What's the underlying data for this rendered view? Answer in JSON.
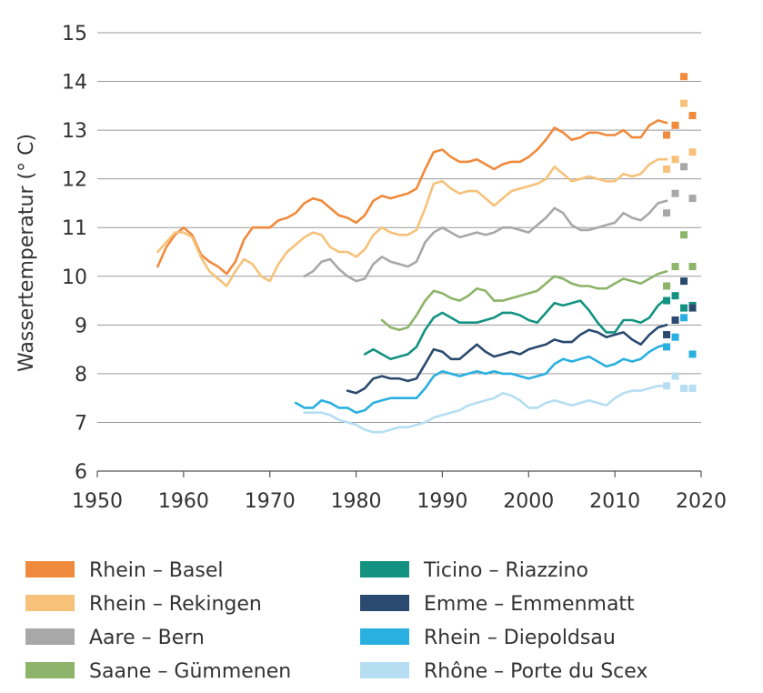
{
  "chart_data": {
    "type": "line",
    "ylabel": "Wassertemperatur (° C)",
    "xlabel": "",
    "xlim": [
      1950,
      2020
    ],
    "ylim": [
      6,
      15
    ],
    "x_ticks": [
      1950,
      1960,
      1970,
      1980,
      1990,
      2000,
      2010,
      2020
    ],
    "y_ticks": [
      6,
      7,
      8,
      9,
      10,
      11,
      12,
      13,
      14,
      15
    ],
    "grid": "horizontal",
    "legend_position": "bottom",
    "series": [
      {
        "name": "Rhein – Basel",
        "color": "#f08a3c",
        "x": [
          1957,
          1958,
          1959,
          1960,
          1961,
          1962,
          1963,
          1964,
          1965,
          1966,
          1967,
          1968,
          1969,
          1970,
          1971,
          1972,
          1973,
          1974,
          1975,
          1976,
          1977,
          1978,
          1979,
          1980,
          1981,
          1982,
          1983,
          1984,
          1985,
          1986,
          1987,
          1988,
          1989,
          1990,
          1991,
          1992,
          1993,
          1994,
          1995,
          1996,
          1997,
          1998,
          1999,
          2000,
          2001,
          2002,
          2003,
          2004,
          2005,
          2006,
          2007,
          2008,
          2009,
          2010,
          2011,
          2012,
          2013,
          2014,
          2015,
          2016
        ],
        "values": [
          10.2,
          10.6,
          10.85,
          11.0,
          10.85,
          10.45,
          10.3,
          10.2,
          10.05,
          10.3,
          10.75,
          11.0,
          11.0,
          11.0,
          11.15,
          11.2,
          11.3,
          11.5,
          11.6,
          11.55,
          11.4,
          11.25,
          11.2,
          11.1,
          11.25,
          11.55,
          11.65,
          11.6,
          11.65,
          11.7,
          11.8,
          12.2,
          12.55,
          12.6,
          12.45,
          12.35,
          12.35,
          12.4,
          12.3,
          12.2,
          12.3,
          12.35,
          12.35,
          12.45,
          12.6,
          12.8,
          13.05,
          12.95,
          12.8,
          12.85,
          12.95,
          12.95,
          12.9,
          12.9,
          13.0,
          12.85,
          12.85,
          13.1,
          13.2,
          13.15
        ],
        "projections": [
          [
            2016,
            12.9
          ],
          [
            2017,
            13.1
          ],
          [
            2018,
            14.1
          ],
          [
            2019,
            13.3
          ]
        ]
      },
      {
        "name": "Rhein – Rekingen",
        "color": "#f6c27a",
        "x": [
          1957,
          1958,
          1959,
          1960,
          1961,
          1962,
          1963,
          1964,
          1965,
          1966,
          1967,
          1968,
          1969,
          1970,
          1971,
          1972,
          1973,
          1974,
          1975,
          1976,
          1977,
          1978,
          1979,
          1980,
          1981,
          1982,
          1983,
          1984,
          1985,
          1986,
          1987,
          1988,
          1989,
          1990,
          1991,
          1992,
          1993,
          1994,
          1995,
          1996,
          1997,
          1998,
          1999,
          2000,
          2001,
          2002,
          2003,
          2004,
          2005,
          2006,
          2007,
          2008,
          2009,
          2010,
          2011,
          2012,
          2013,
          2014,
          2015,
          2016
        ],
        "values": [
          10.5,
          10.7,
          10.9,
          10.9,
          10.8,
          10.4,
          10.1,
          9.95,
          9.8,
          10.1,
          10.35,
          10.25,
          10.0,
          9.9,
          10.25,
          10.5,
          10.65,
          10.8,
          10.9,
          10.85,
          10.6,
          10.5,
          10.5,
          10.4,
          10.55,
          10.85,
          11.0,
          10.9,
          10.85,
          10.85,
          10.95,
          11.4,
          11.9,
          11.95,
          11.8,
          11.7,
          11.75,
          11.75,
          11.6,
          11.45,
          11.6,
          11.75,
          11.8,
          11.85,
          11.9,
          12.0,
          12.25,
          12.1,
          11.95,
          12.0,
          12.05,
          12.0,
          11.95,
          11.95,
          12.1,
          12.05,
          12.1,
          12.3,
          12.4,
          12.4
        ],
        "projections": [
          [
            2016,
            12.2
          ],
          [
            2017,
            12.4
          ],
          [
            2018,
            13.55
          ],
          [
            2019,
            12.55
          ]
        ]
      },
      {
        "name": "Aare – Bern",
        "color": "#a8a8a8",
        "x": [
          1974,
          1975,
          1976,
          1977,
          1978,
          1979,
          1980,
          1981,
          1982,
          1983,
          1984,
          1985,
          1986,
          1987,
          1988,
          1989,
          1990,
          1991,
          1992,
          1993,
          1994,
          1995,
          1996,
          1997,
          1998,
          1999,
          2000,
          2001,
          2002,
          2003,
          2004,
          2005,
          2006,
          2007,
          2008,
          2009,
          2010,
          2011,
          2012,
          2013,
          2014,
          2015,
          2016
        ],
        "values": [
          10.0,
          10.1,
          10.3,
          10.35,
          10.15,
          10.0,
          9.9,
          9.95,
          10.25,
          10.4,
          10.3,
          10.25,
          10.2,
          10.3,
          10.7,
          10.9,
          11.0,
          10.9,
          10.8,
          10.85,
          10.9,
          10.85,
          10.9,
          11.0,
          11.0,
          10.95,
          10.9,
          11.05,
          11.2,
          11.4,
          11.3,
          11.05,
          10.95,
          10.95,
          11.0,
          11.05,
          11.1,
          11.3,
          11.2,
          11.15,
          11.3,
          11.5,
          11.55
        ],
        "projections": [
          [
            2016,
            11.3
          ],
          [
            2017,
            11.7
          ],
          [
            2018,
            12.25
          ],
          [
            2019,
            11.6
          ]
        ]
      },
      {
        "name": "Saane – Gümmenen",
        "color": "#8db46a",
        "x": [
          1983,
          1984,
          1985,
          1986,
          1987,
          1988,
          1989,
          1990,
          1991,
          1992,
          1993,
          1994,
          1995,
          1996,
          1997,
          1998,
          1999,
          2000,
          2001,
          2002,
          2003,
          2004,
          2005,
          2006,
          2007,
          2008,
          2009,
          2010,
          2011,
          2012,
          2013,
          2014,
          2015,
          2016
        ],
        "values": [
          9.1,
          8.95,
          8.9,
          8.95,
          9.2,
          9.5,
          9.7,
          9.65,
          9.55,
          9.5,
          9.6,
          9.75,
          9.7,
          9.5,
          9.5,
          9.55,
          9.6,
          9.65,
          9.7,
          9.85,
          10.0,
          9.95,
          9.85,
          9.8,
          9.8,
          9.75,
          9.75,
          9.85,
          9.95,
          9.9,
          9.85,
          9.95,
          10.05,
          10.1
        ],
        "projections": [
          [
            2016,
            9.8
          ],
          [
            2017,
            10.2
          ],
          [
            2018,
            10.85
          ],
          [
            2019,
            10.2
          ]
        ]
      },
      {
        "name": "Ticino – Riazzino",
        "color": "#139282",
        "x": [
          1981,
          1982,
          1983,
          1984,
          1985,
          1986,
          1987,
          1988,
          1989,
          1990,
          1991,
          1992,
          1993,
          1994,
          1995,
          1996,
          1997,
          1998,
          1999,
          2000,
          2001,
          2002,
          2003,
          2004,
          2005,
          2006,
          2007,
          2008,
          2009,
          2010,
          2011,
          2012,
          2013,
          2014,
          2015,
          2016
        ],
        "values": [
          8.4,
          8.5,
          8.4,
          8.3,
          8.35,
          8.4,
          8.55,
          8.9,
          9.15,
          9.25,
          9.15,
          9.05,
          9.05,
          9.05,
          9.1,
          9.15,
          9.25,
          9.25,
          9.2,
          9.1,
          9.05,
          9.25,
          9.45,
          9.4,
          9.45,
          9.5,
          9.3,
          9.05,
          8.85,
          8.85,
          9.1,
          9.1,
          9.05,
          9.15,
          9.4,
          9.55
        ],
        "projections": [
          [
            2016,
            9.5
          ],
          [
            2017,
            9.6
          ],
          [
            2018,
            9.35
          ],
          [
            2019,
            9.4
          ]
        ]
      },
      {
        "name": "Emme – Emmenmatt",
        "color": "#2b4a6f",
        "x": [
          1979,
          1980,
          1981,
          1982,
          1983,
          1984,
          1985,
          1986,
          1987,
          1988,
          1989,
          1990,
          1991,
          1992,
          1993,
          1994,
          1995,
          1996,
          1997,
          1998,
          1999,
          2000,
          2001,
          2002,
          2003,
          2004,
          2005,
          2006,
          2007,
          2008,
          2009,
          2010,
          2011,
          2012,
          2013,
          2014,
          2015,
          2016
        ],
        "values": [
          7.65,
          7.6,
          7.7,
          7.9,
          7.95,
          7.9,
          7.9,
          7.85,
          7.9,
          8.2,
          8.5,
          8.45,
          8.3,
          8.3,
          8.45,
          8.6,
          8.45,
          8.35,
          8.4,
          8.45,
          8.4,
          8.5,
          8.55,
          8.6,
          8.7,
          8.65,
          8.65,
          8.8,
          8.9,
          8.85,
          8.75,
          8.8,
          8.85,
          8.7,
          8.6,
          8.8,
          8.95,
          9.0
        ],
        "projections": [
          [
            2016,
            8.8
          ],
          [
            2017,
            9.1
          ],
          [
            2018,
            9.9
          ],
          [
            2019,
            9.35
          ]
        ]
      },
      {
        "name": "Rhein – Diepoldsau",
        "color": "#29b0e0",
        "x": [
          1973,
          1974,
          1975,
          1976,
          1977,
          1978,
          1979,
          1980,
          1981,
          1982,
          1983,
          1984,
          1985,
          1986,
          1987,
          1988,
          1989,
          1990,
          1991,
          1992,
          1993,
          1994,
          1995,
          1996,
          1997,
          1998,
          1999,
          2000,
          2001,
          2002,
          2003,
          2004,
          2005,
          2006,
          2007,
          2008,
          2009,
          2010,
          2011,
          2012,
          2013,
          2014,
          2015,
          2016
        ],
        "values": [
          7.4,
          7.3,
          7.3,
          7.45,
          7.4,
          7.3,
          7.3,
          7.2,
          7.25,
          7.4,
          7.45,
          7.5,
          7.5,
          7.5,
          7.5,
          7.7,
          7.95,
          8.05,
          8.0,
          7.95,
          8.0,
          8.05,
          8.0,
          8.05,
          8.0,
          8.0,
          7.95,
          7.9,
          7.95,
          8.0,
          8.2,
          8.3,
          8.25,
          8.3,
          8.35,
          8.25,
          8.15,
          8.2,
          8.3,
          8.25,
          8.3,
          8.45,
          8.55,
          8.6
        ],
        "projections": [
          [
            2016,
            8.55
          ],
          [
            2017,
            8.75
          ],
          [
            2018,
            9.15
          ],
          [
            2019,
            8.4
          ]
        ]
      },
      {
        "name": "Rhône – Porte du Scex",
        "color": "#b5def2",
        "x": [
          1974,
          1975,
          1976,
          1977,
          1978,
          1979,
          1980,
          1981,
          1982,
          1983,
          1984,
          1985,
          1986,
          1987,
          1988,
          1989,
          1990,
          1991,
          1992,
          1993,
          1994,
          1995,
          1996,
          1997,
          1998,
          1999,
          2000,
          2001,
          2002,
          2003,
          2004,
          2005,
          2006,
          2007,
          2008,
          2009,
          2010,
          2011,
          2012,
          2013,
          2014,
          2015,
          2016
        ],
        "values": [
          7.2,
          7.2,
          7.2,
          7.15,
          7.05,
          7.0,
          6.95,
          6.85,
          6.8,
          6.8,
          6.85,
          6.9,
          6.9,
          6.95,
          7.0,
          7.1,
          7.15,
          7.2,
          7.25,
          7.35,
          7.4,
          7.45,
          7.5,
          7.6,
          7.55,
          7.45,
          7.3,
          7.3,
          7.4,
          7.45,
          7.4,
          7.35,
          7.4,
          7.45,
          7.4,
          7.35,
          7.5,
          7.6,
          7.65,
          7.65,
          7.7,
          7.75,
          7.75
        ],
        "projections": [
          [
            2016,
            7.75
          ],
          [
            2017,
            7.95
          ],
          [
            2018,
            7.7
          ],
          [
            2019,
            7.7
          ]
        ]
      }
    ]
  }
}
